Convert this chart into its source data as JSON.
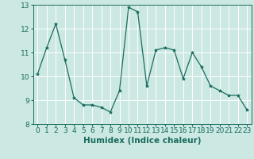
{
  "x": [
    0,
    1,
    2,
    3,
    4,
    5,
    6,
    7,
    8,
    9,
    10,
    11,
    12,
    13,
    14,
    15,
    16,
    17,
    18,
    19,
    20,
    21,
    22,
    23
  ],
  "y": [
    10.1,
    11.2,
    12.2,
    10.7,
    9.1,
    8.8,
    8.8,
    8.7,
    8.5,
    9.4,
    12.9,
    12.7,
    9.6,
    11.1,
    11.2,
    11.1,
    9.9,
    11.0,
    10.4,
    9.6,
    9.4,
    9.2,
    9.2,
    8.6
  ],
  "line_color": "#1a6b5e",
  "marker": "*",
  "marker_size": 3,
  "bg_color": "#cce8e3",
  "grid_color": "#ffffff",
  "xlabel": "Humidex (Indice chaleur)",
  "ylim": [
    8,
    13
  ],
  "xlim_min": -0.5,
  "xlim_max": 23.5,
  "yticks": [
    8,
    9,
    10,
    11,
    12,
    13
  ],
  "xticks": [
    0,
    1,
    2,
    3,
    4,
    5,
    6,
    7,
    8,
    9,
    10,
    11,
    12,
    13,
    14,
    15,
    16,
    17,
    18,
    19,
    20,
    21,
    22,
    23
  ],
  "label_color": "#1a6b5e",
  "tick_color": "#1a6b5e",
  "xlabel_fontsize": 7.5,
  "tick_fontsize": 6.5
}
